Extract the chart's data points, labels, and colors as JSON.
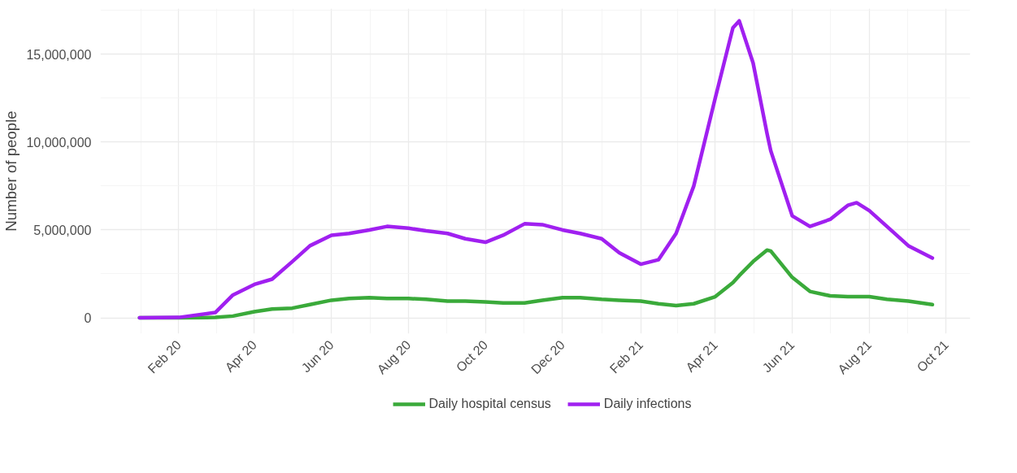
{
  "chart_data": {
    "type": "line",
    "ylabel": "Number of people",
    "x": [
      "2020-01-01",
      "2020-02-01",
      "2020-03-01",
      "2020-03-15",
      "2020-04-01",
      "2020-04-15",
      "2020-05-01",
      "2020-05-15",
      "2020-06-01",
      "2020-06-15",
      "2020-07-01",
      "2020-07-15",
      "2020-08-01",
      "2020-08-15",
      "2020-09-01",
      "2020-09-15",
      "2020-10-01",
      "2020-10-15",
      "2020-11-01",
      "2020-11-15",
      "2020-12-01",
      "2020-12-15",
      "2021-01-01",
      "2021-01-15",
      "2021-02-01",
      "2021-02-15",
      "2021-03-01",
      "2021-03-15",
      "2021-04-01",
      "2021-04-15",
      "2021-04-20",
      "2021-05-01",
      "2021-05-12",
      "2021-05-15",
      "2021-06-01",
      "2021-06-15",
      "2021-07-01",
      "2021-07-15",
      "2021-07-22",
      "2021-08-01",
      "2021-08-15",
      "2021-09-01",
      "2021-09-20"
    ],
    "series": [
      {
        "name": "Daily hospital census",
        "color": "#3aaa3a",
        "values": [
          0,
          0,
          20000,
          100000,
          350000,
          500000,
          550000,
          750000,
          1000000,
          1100000,
          1150000,
          1100000,
          1100000,
          1050000,
          950000,
          950000,
          900000,
          850000,
          850000,
          1000000,
          1150000,
          1150000,
          1050000,
          1000000,
          950000,
          800000,
          700000,
          800000,
          1200000,
          2000000,
          2400000,
          3200000,
          3850000,
          3800000,
          2300000,
          1500000,
          1250000,
          1200000,
          1200000,
          1200000,
          1050000,
          950000,
          750000
        ]
      },
      {
        "name": "Daily infections",
        "color": "#a020f0",
        "values": [
          0,
          20000,
          300000,
          1300000,
          1900000,
          2200000,
          3200000,
          4100000,
          4700000,
          4800000,
          5000000,
          5200000,
          5100000,
          4950000,
          4800000,
          4500000,
          4300000,
          4700000,
          5350000,
          5300000,
          5000000,
          4800000,
          4500000,
          3700000,
          3050000,
          3300000,
          4800000,
          7500000,
          12500000,
          16500000,
          16900000,
          14500000,
          10500000,
          9500000,
          5800000,
          5200000,
          5600000,
          6400000,
          6550000,
          6100000,
          5200000,
          4100000,
          3400000
        ]
      }
    ],
    "xlim": [
      "2019-12-01",
      "2021-10-20"
    ],
    "xticks": [
      {
        "value": "2020-02-01",
        "label": "Feb 20"
      },
      {
        "value": "2020-04-01",
        "label": "Apr 20"
      },
      {
        "value": "2020-06-01",
        "label": "Jun 20"
      },
      {
        "value": "2020-08-01",
        "label": "Aug 20"
      },
      {
        "value": "2020-10-01",
        "label": "Oct 20"
      },
      {
        "value": "2020-12-01",
        "label": "Dec 20"
      },
      {
        "value": "2021-02-01",
        "label": "Feb 21"
      },
      {
        "value": "2021-04-01",
        "label": "Apr 21"
      },
      {
        "value": "2021-06-01",
        "label": "Jun 21"
      },
      {
        "value": "2021-08-01",
        "label": "Aug 21"
      },
      {
        "value": "2021-10-01",
        "label": "Oct 21"
      }
    ],
    "ylim": [
      -900000,
      17600000
    ],
    "yticks": [
      {
        "value": 0,
        "label": "0"
      },
      {
        "value": 5000000,
        "label": "5,000,000"
      },
      {
        "value": 10000000,
        "label": "10,000,000"
      },
      {
        "value": 15000000,
        "label": "15,000,000"
      }
    ],
    "grid": true,
    "legend": "bottom",
    "line_style": "solid",
    "marker": "none"
  }
}
